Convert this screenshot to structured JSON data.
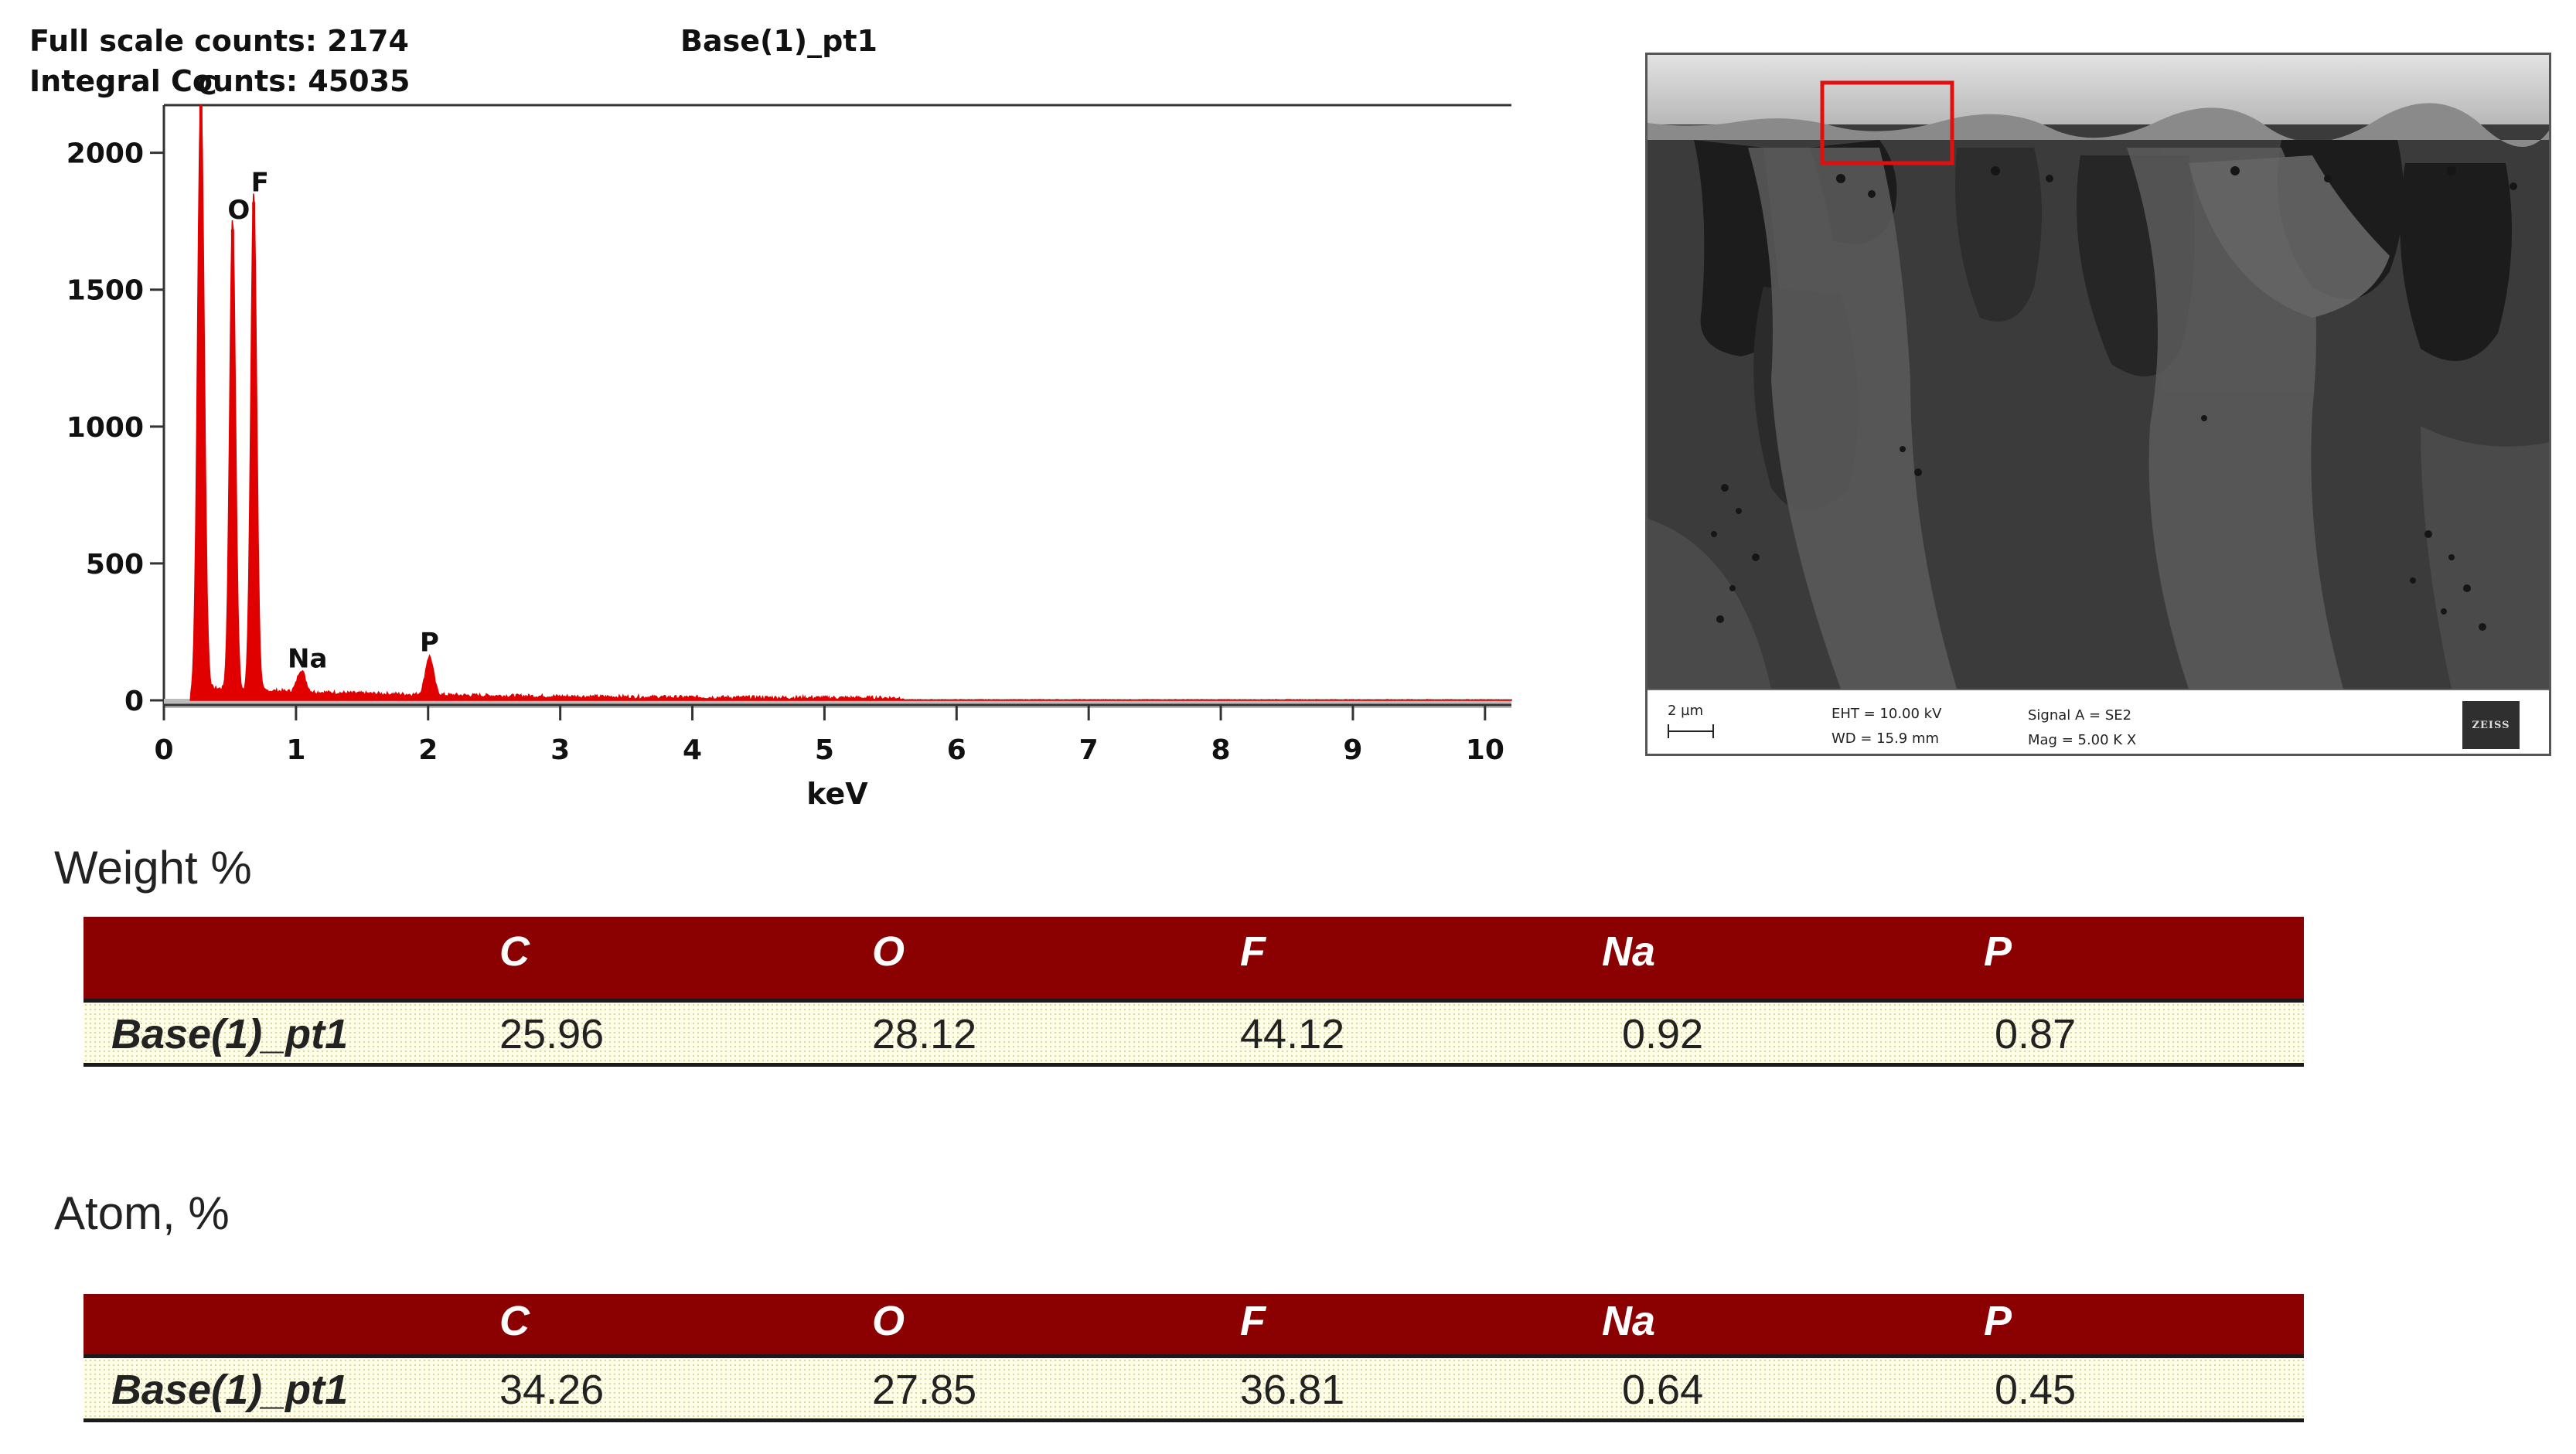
{
  "chart_data": {
    "type": "bar",
    "title": "Base(1)_pt1",
    "header_left": [
      "Full scale counts: 2174",
      "Integral Counts: 45035"
    ],
    "xlabel": "keV",
    "ylabel": "",
    "xlim": [
      0,
      10.2
    ],
    "ylim": [
      0,
      2174
    ],
    "x_ticks": [
      "0",
      "1",
      "2",
      "3",
      "4",
      "5",
      "6",
      "7",
      "8",
      "9",
      "10"
    ],
    "y_ticks": [
      "0",
      "500",
      "1000",
      "1500",
      "2000"
    ],
    "x_tick_values": [
      0,
      1,
      2,
      3,
      4,
      5,
      6,
      7,
      8,
      9,
      10
    ],
    "y_tick_values": [
      0,
      500,
      1000,
      1500,
      2000
    ],
    "color": "#e00000",
    "peaks": [
      {
        "label": "C",
        "x": 0.28,
        "y": 2174
      },
      {
        "label": "O",
        "x": 0.52,
        "y": 1720
      },
      {
        "label": "F",
        "x": 0.68,
        "y": 1820
      },
      {
        "label": "Na",
        "x": 1.04,
        "y": 80
      },
      {
        "label": "P",
        "x": 2.01,
        "y": 140
      }
    ],
    "grid": false,
    "legend": "none"
  },
  "sem": {
    "scale": "2 µm",
    "eht": "EHT = 10.00 kV",
    "wd": "WD = 15.9 mm",
    "signal": "Signal A = SE2",
    "mag": "Mag =   5.00 K X",
    "logo": "ZEISS"
  },
  "weight_table": {
    "title": "Weight %",
    "columns": [
      "C",
      "O",
      "F",
      "Na",
      "P"
    ],
    "row_name": "Base(1)_pt1",
    "values": [
      "25.96",
      "28.12",
      "44.12",
      "0.92",
      "0.87"
    ]
  },
  "atom_table": {
    "title": "Atom, %",
    "columns": [
      "C",
      "O",
      "F",
      "Na",
      "P"
    ],
    "row_name": "Base(1)_pt1",
    "values": [
      "34.26",
      "27.85",
      "36.81",
      "0.64",
      "0.45"
    ]
  }
}
